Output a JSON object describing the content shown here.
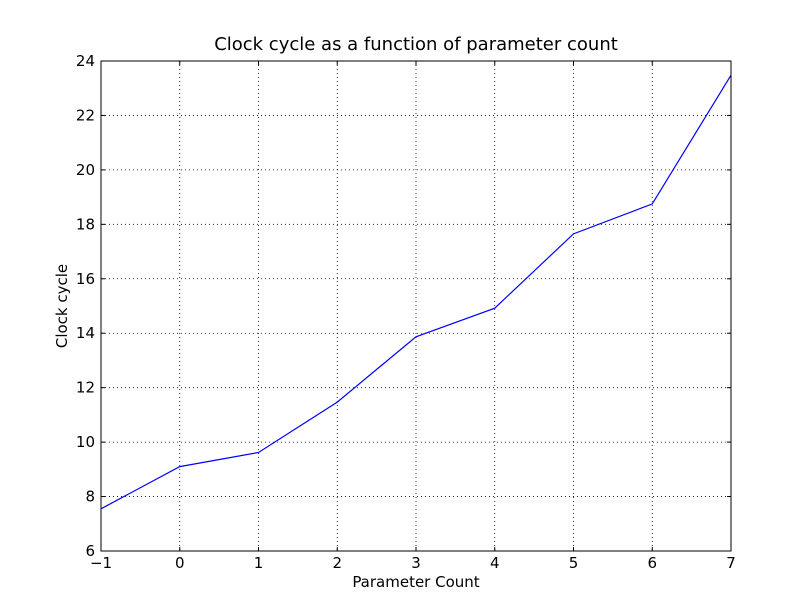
{
  "chart_data": {
    "type": "line",
    "title": "Clock cycle as a function of parameter count",
    "xlabel": "Parameter Count",
    "ylabel": "Clock cycle",
    "xlim": [
      -1,
      7
    ],
    "ylim": [
      6,
      24
    ],
    "xticks": [
      -1,
      0,
      1,
      2,
      3,
      4,
      5,
      6,
      7
    ],
    "yticks": [
      6,
      8,
      10,
      12,
      14,
      16,
      18,
      20,
      22,
      24
    ],
    "xtick_labels": [
      "−1",
      "0",
      "1",
      "2",
      "3",
      "4",
      "5",
      "6",
      "7"
    ],
    "ytick_labels": [
      "6",
      "8",
      "10",
      "12",
      "14",
      "16",
      "18",
      "20",
      "22",
      "24"
    ],
    "grid": true,
    "grid_style": "dotted",
    "series": [
      {
        "color": "#0000ff",
        "x": [
          -1,
          0,
          1,
          2,
          3,
          4,
          5,
          6,
          7
        ],
        "y": [
          7.55,
          9.1,
          9.62,
          11.47,
          13.87,
          14.92,
          17.65,
          18.75,
          23.48
        ]
      }
    ]
  }
}
